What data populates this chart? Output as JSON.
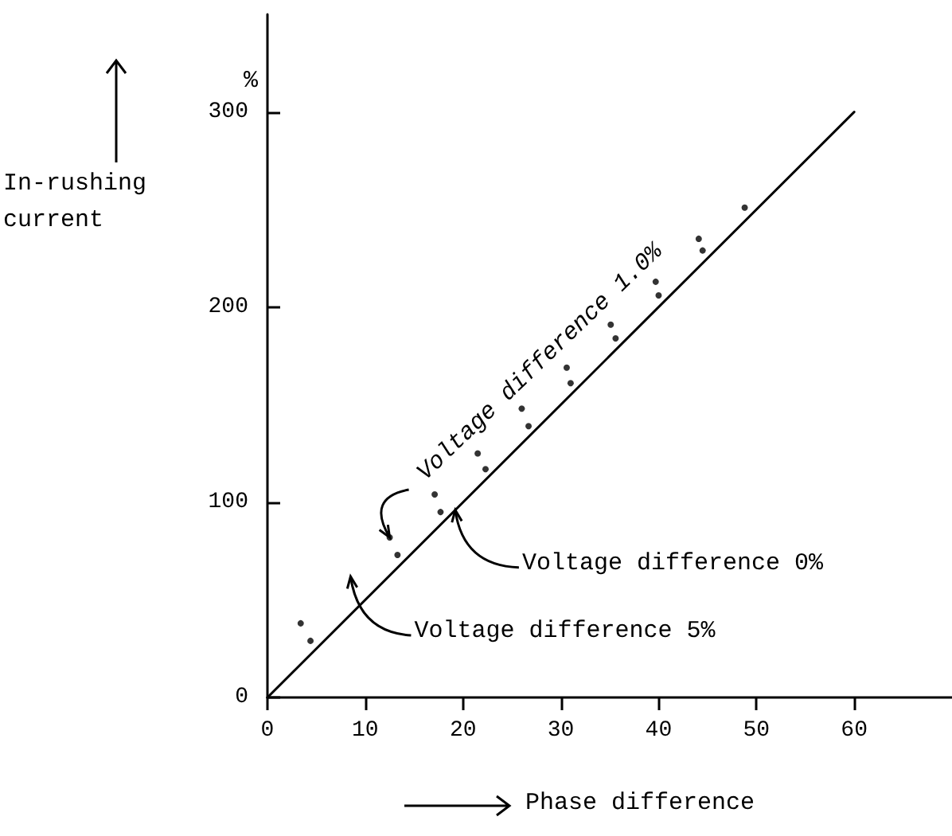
{
  "chart_data": {
    "type": "line",
    "xlabel": "Phase difference",
    "ylabel": "In-rushing current",
    "xlim": [
      0,
      70
    ],
    "xticks": [
      0,
      10,
      20,
      30,
      40,
      50,
      60
    ],
    "ylim": [
      0,
      350
    ],
    "yticks": [
      0,
      100,
      200,
      300
    ],
    "grid": false,
    "series": [
      {
        "color": "#000000",
        "marker": "none",
        "line_style": "solid",
        "x": [
          0,
          60
        ],
        "values": [
          0,
          300
        ]
      },
      {
        "type": "scatter",
        "color": "#000000",
        "marker": "circle",
        "x": [
          3.4,
          4.4,
          12.5,
          13.3,
          17.1,
          17.7,
          21.5,
          22.3,
          26,
          26.7,
          30.6,
          31,
          35.1,
          35.6,
          39.7,
          40,
          44.1,
          44.5,
          48.8
        ],
        "values": [
          38,
          29,
          82,
          73,
          104,
          95,
          125,
          117,
          148,
          139,
          169,
          161,
          191,
          184,
          213,
          206,
          235,
          229,
          251
        ]
      }
    ],
    "annotations": [
      "%",
      {
        "text": "Voltage difference 1.0%",
        "x": 12.5,
        "y": 82
      },
      {
        "text": "Voltage difference 0%",
        "x": 19.2,
        "y": 96
      },
      "Voltage difference 5%"
    ]
  }
}
